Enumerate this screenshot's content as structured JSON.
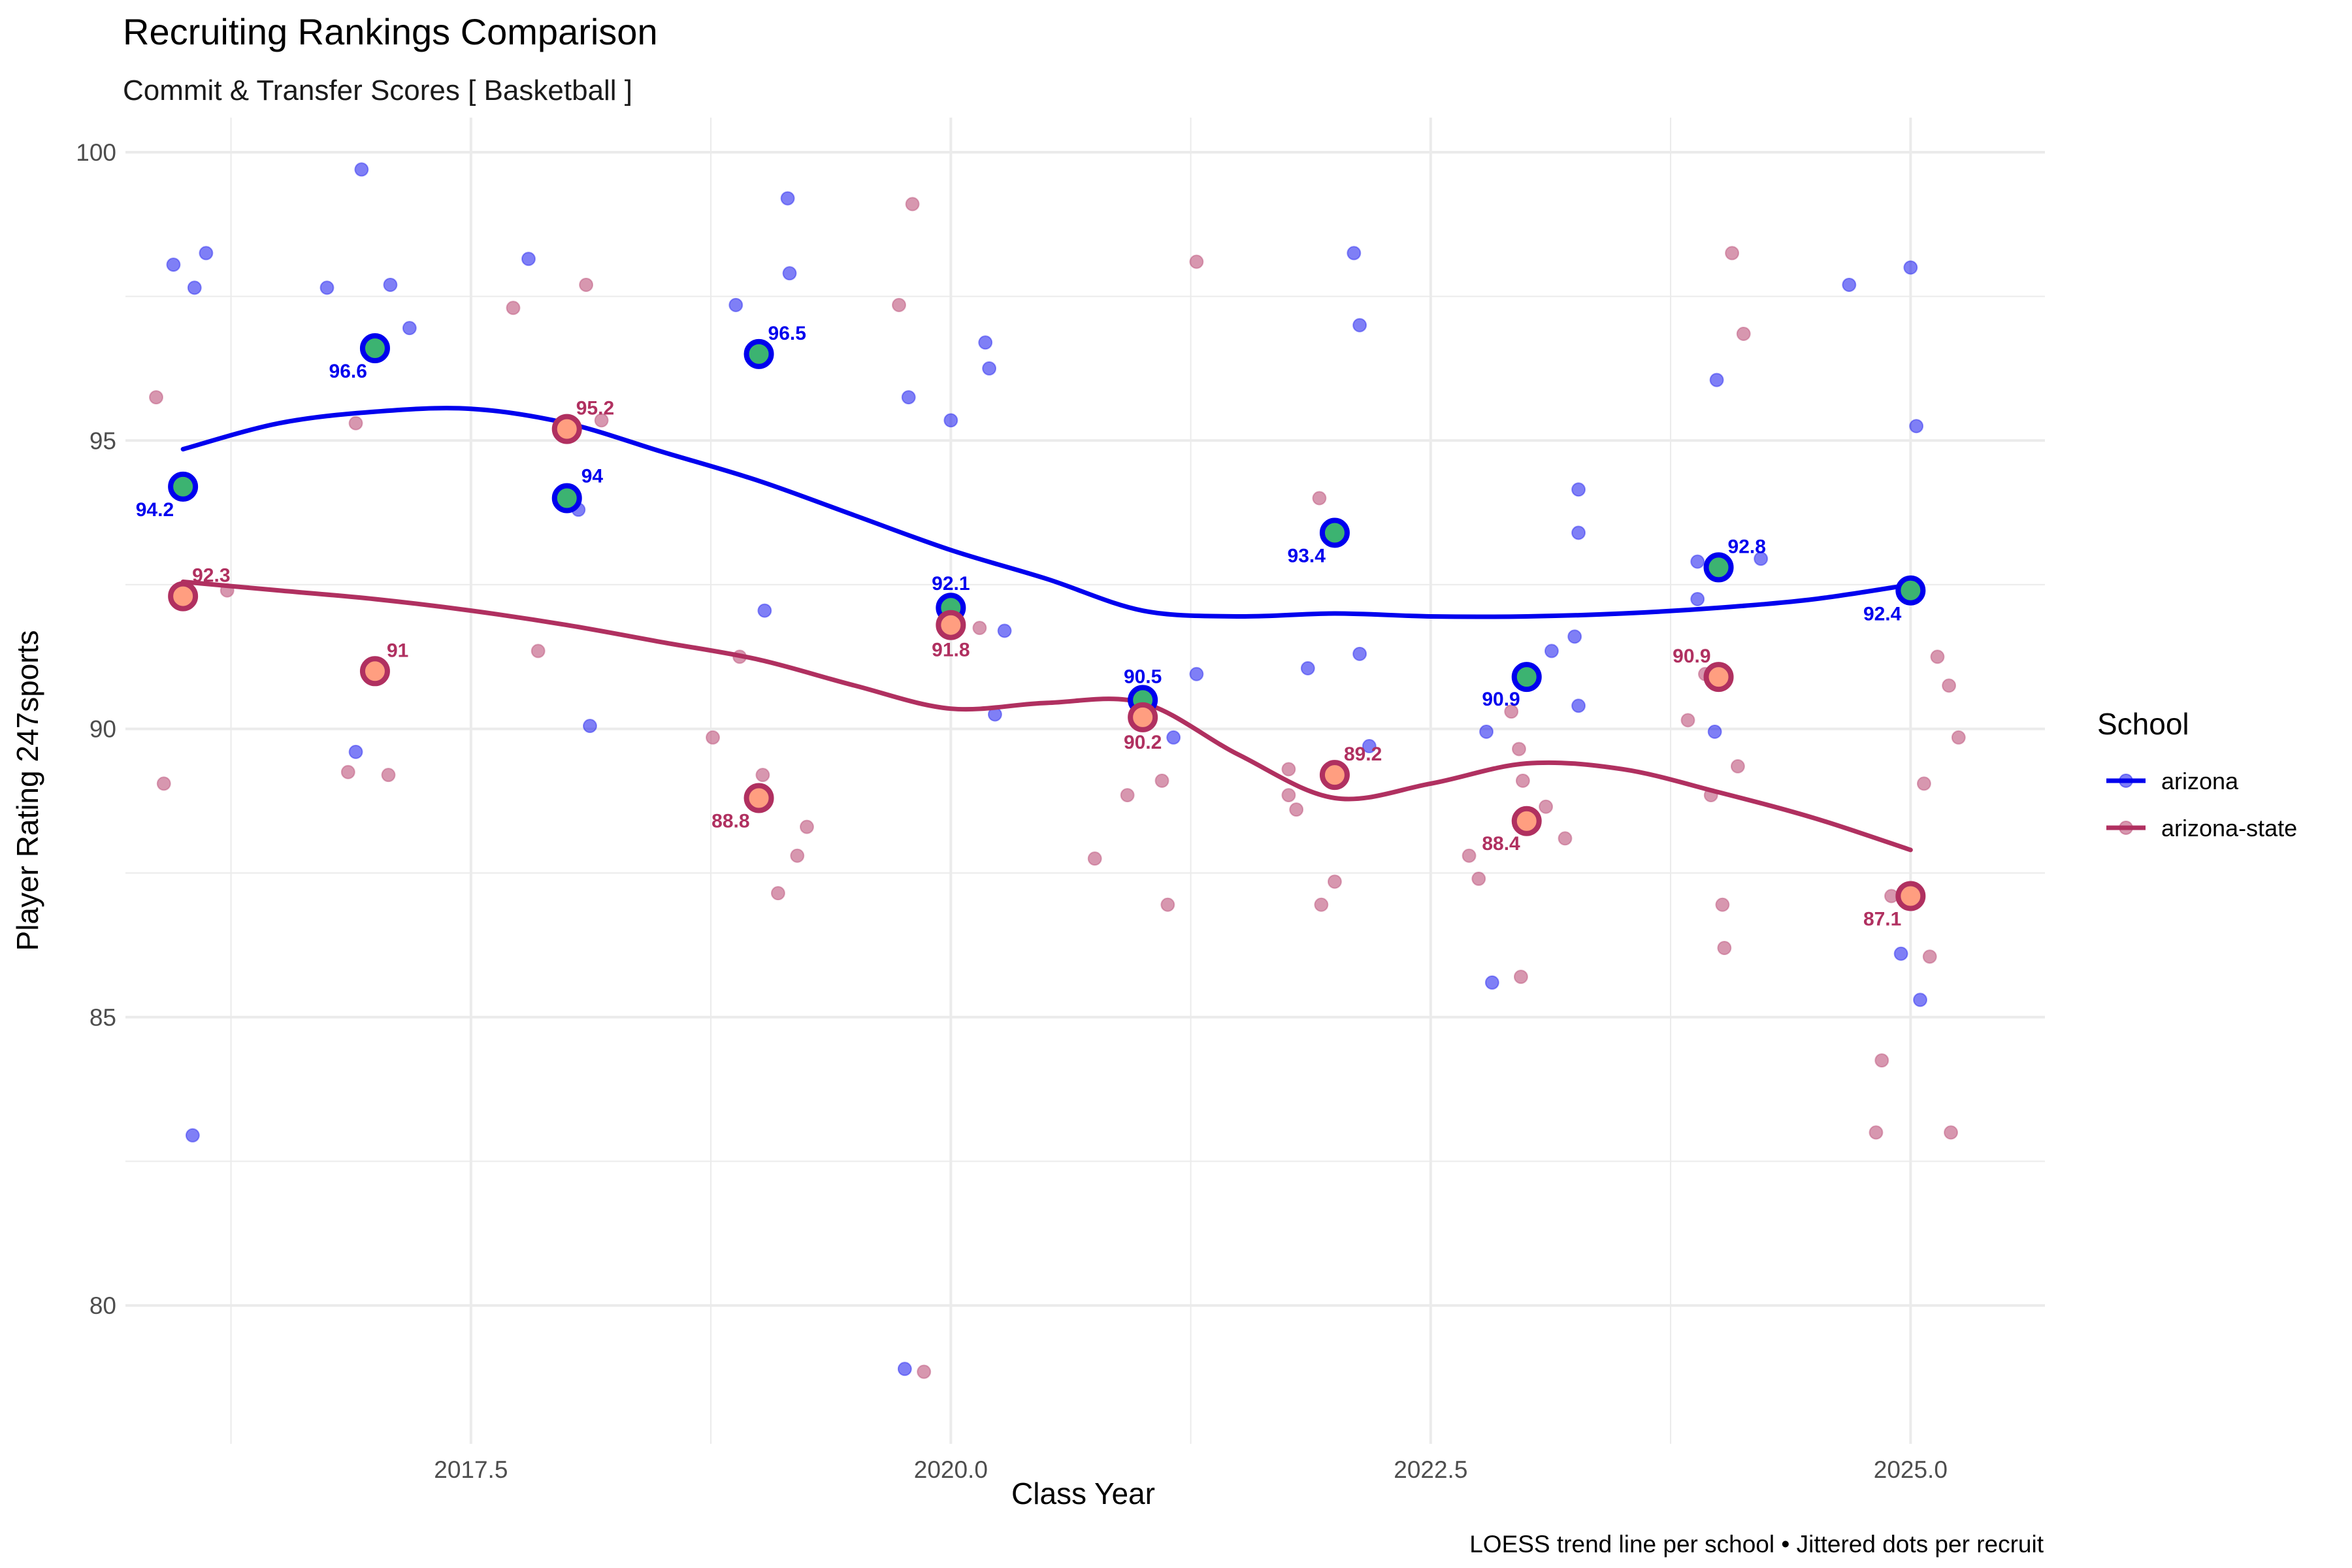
{
  "chart_data": {
    "type": "scatter",
    "title": "Recruiting Rankings Comparison",
    "subtitle": "Commit & Transfer Scores [ Basketball ]",
    "xlabel": "Class Year",
    "ylabel": "Player Rating 247sports",
    "caption": "LOESS trend line per school • Jittered dots per recruit",
    "xlim": [
      2015.7,
      2025.7
    ],
    "ylim": [
      77.6,
      100.6
    ],
    "x_ticks": [
      2017.5,
      2020.0,
      2022.5,
      2025.0
    ],
    "x_tick_labels": [
      "2017.5",
      "2020.0",
      "2022.5",
      "2025.0"
    ],
    "y_ticks": [
      80,
      85,
      90,
      95,
      100
    ],
    "y_tick_labels": [
      "80",
      "85",
      "90",
      "95",
      "100"
    ],
    "grid": true,
    "legend": {
      "title": "School",
      "position": "right"
    },
    "series": [
      {
        "name": "arizona",
        "color": "#0000EE",
        "annual_averages": [
          {
            "x": 2016,
            "y": 94.2,
            "label": "94.2"
          },
          {
            "x": 2017,
            "y": 96.6,
            "label": "96.6"
          },
          {
            "x": 2018,
            "y": 94.0,
            "label": "94"
          },
          {
            "x": 2019,
            "y": 96.5,
            "label": "96.5"
          },
          {
            "x": 2020,
            "y": 92.1,
            "label": "92.1"
          },
          {
            "x": 2021,
            "y": 90.5,
            "label": "90.5"
          },
          {
            "x": 2022,
            "y": 93.4,
            "label": "93.4"
          },
          {
            "x": 2023,
            "y": 90.9,
            "label": "90.9"
          },
          {
            "x": 2024,
            "y": 92.8,
            "label": "92.8"
          },
          {
            "x": 2025,
            "y": 92.4,
            "label": "92.4"
          }
        ],
        "trend": [
          [
            2016,
            94.85
          ],
          [
            2016.5,
            95.3
          ],
          [
            2017,
            95.5
          ],
          [
            2017.5,
            95.55
          ],
          [
            2018,
            95.3
          ],
          [
            2018.5,
            94.8
          ],
          [
            2019,
            94.3
          ],
          [
            2019.5,
            93.7
          ],
          [
            2020,
            93.1
          ],
          [
            2020.5,
            92.6
          ],
          [
            2021,
            92.05
          ],
          [
            2021.5,
            91.95
          ],
          [
            2022,
            92.0
          ],
          [
            2022.5,
            91.95
          ],
          [
            2023,
            91.95
          ],
          [
            2023.5,
            92.0
          ],
          [
            2024,
            92.1
          ],
          [
            2024.5,
            92.25
          ],
          [
            2025,
            92.5
          ]
        ],
        "recruits": [
          [
            2015.95,
            98.05
          ],
          [
            2016.06,
            97.65
          ],
          [
            2016.12,
            98.25
          ],
          [
            2016.05,
            82.95
          ],
          [
            2016.75,
            97.65
          ],
          [
            2016.93,
            99.7
          ],
          [
            2017.08,
            97.7
          ],
          [
            2017.18,
            96.95
          ],
          [
            2016.9,
            89.6
          ],
          [
            2017.8,
            98.15
          ],
          [
            2018.06,
            93.8
          ],
          [
            2018.12,
            90.05
          ],
          [
            2018.88,
            97.35
          ],
          [
            2019.16,
            97.9
          ],
          [
            2019.15,
            99.2
          ],
          [
            2019.03,
            92.05
          ],
          [
            2019.78,
            95.75
          ],
          [
            2020.18,
            96.7
          ],
          [
            2020.2,
            96.25
          ],
          [
            2020.0,
            95.35
          ],
          [
            2020.28,
            91.7
          ],
          [
            2020.23,
            90.25
          ],
          [
            2019.76,
            78.9
          ],
          [
            2021.16,
            89.85
          ],
          [
            2021.28,
            90.95
          ],
          [
            2021.86,
            91.05
          ],
          [
            2022.1,
            98.25
          ],
          [
            2022.13,
            97.0
          ],
          [
            2022.13,
            91.3
          ],
          [
            2022.18,
            89.7
          ],
          [
            2023.13,
            91.35
          ],
          [
            2023.25,
            91.6
          ],
          [
            2023.27,
            94.15
          ],
          [
            2023.27,
            93.4
          ],
          [
            2023.27,
            90.4
          ],
          [
            2022.79,
            89.95
          ],
          [
            2022.82,
            85.6
          ],
          [
            2023.89,
            92.9
          ],
          [
            2023.89,
            92.25
          ],
          [
            2023.98,
            89.95
          ],
          [
            2024.22,
            92.95
          ],
          [
            2023.99,
            96.05
          ],
          [
            2024.68,
            97.7
          ],
          [
            2025.0,
            98.0
          ],
          [
            2025.03,
            95.25
          ],
          [
            2024.95,
            86.1
          ],
          [
            2025.05,
            85.3
          ]
        ]
      },
      {
        "name": "arizona-state",
        "color": "#B03060",
        "annual_averages": [
          {
            "x": 2016,
            "y": 92.3,
            "label": "92.3"
          },
          {
            "x": 2017,
            "y": 91.0,
            "label": "91"
          },
          {
            "x": 2018,
            "y": 95.2,
            "label": "95.2"
          },
          {
            "x": 2019,
            "y": 88.8,
            "label": "88.8"
          },
          {
            "x": 2020,
            "y": 91.8,
            "label": "91.8"
          },
          {
            "x": 2021,
            "y": 90.2,
            "label": "90.2"
          },
          {
            "x": 2022,
            "y": 89.2,
            "label": "89.2"
          },
          {
            "x": 2023,
            "y": 88.4,
            "label": "88.4"
          },
          {
            "x": 2024,
            "y": 90.9,
            "label": "90.9"
          },
          {
            "x": 2025,
            "y": 87.1,
            "label": "87.1"
          }
        ],
        "trend": [
          [
            2016,
            92.55
          ],
          [
            2016.5,
            92.4
          ],
          [
            2017,
            92.25
          ],
          [
            2017.5,
            92.05
          ],
          [
            2018,
            91.8
          ],
          [
            2018.5,
            91.5
          ],
          [
            2019,
            91.2
          ],
          [
            2019.5,
            90.75
          ],
          [
            2020,
            90.35
          ],
          [
            2020.5,
            90.45
          ],
          [
            2021,
            90.45
          ],
          [
            2021.5,
            89.55
          ],
          [
            2022,
            88.8
          ],
          [
            2022.5,
            89.05
          ],
          [
            2023,
            89.4
          ],
          [
            2023.5,
            89.3
          ],
          [
            2024,
            88.9
          ],
          [
            2024.5,
            88.45
          ],
          [
            2025,
            87.9
          ]
        ],
        "recruits": [
          [
            2015.86,
            95.75
          ],
          [
            2015.9,
            89.05
          ],
          [
            2016.23,
            92.4
          ],
          [
            2016.9,
            95.3
          ],
          [
            2016.86,
            89.25
          ],
          [
            2017.07,
            89.2
          ],
          [
            2017.72,
            97.3
          ],
          [
            2017.85,
            91.35
          ],
          [
            2018.1,
            97.7
          ],
          [
            2018.18,
            95.35
          ],
          [
            2018.76,
            89.85
          ],
          [
            2018.9,
            91.25
          ],
          [
            2019.02,
            89.2
          ],
          [
            2019.1,
            87.15
          ],
          [
            2019.2,
            87.8
          ],
          [
            2019.25,
            88.3
          ],
          [
            2019.73,
            97.35
          ],
          [
            2019.8,
            99.1
          ],
          [
            2019.86,
            78.85
          ],
          [
            2020.15,
            91.75
          ],
          [
            2020.75,
            87.75
          ],
          [
            2020.92,
            88.85
          ],
          [
            2021.1,
            89.1
          ],
          [
            2021.13,
            86.95
          ],
          [
            2021.28,
            98.1
          ],
          [
            2021.76,
            89.3
          ],
          [
            2021.76,
            88.85
          ],
          [
            2021.8,
            88.6
          ],
          [
            2021.92,
            94.0
          ],
          [
            2021.93,
            86.95
          ],
          [
            2022.0,
            87.35
          ],
          [
            2022.7,
            87.8
          ],
          [
            2022.75,
            87.4
          ],
          [
            2022.92,
            90.3
          ],
          [
            2022.96,
            89.65
          ],
          [
            2022.98,
            89.1
          ],
          [
            2023.1,
            88.65
          ],
          [
            2023.2,
            88.1
          ],
          [
            2022.97,
            85.7
          ],
          [
            2023.84,
            90.15
          ],
          [
            2023.93,
            90.95
          ],
          [
            2023.96,
            88.85
          ],
          [
            2024.02,
            86.95
          ],
          [
            2024.03,
            86.2
          ],
          [
            2024.07,
            98.25
          ],
          [
            2024.1,
            89.35
          ],
          [
            2024.13,
            96.85
          ],
          [
            2024.82,
            83.0
          ],
          [
            2024.85,
            84.25
          ],
          [
            2024.9,
            87.1
          ],
          [
            2025.07,
            89.05
          ],
          [
            2025.1,
            86.05
          ],
          [
            2025.14,
            91.25
          ],
          [
            2025.2,
            90.75
          ],
          [
            2025.25,
            89.85
          ],
          [
            2025.21,
            83.0
          ]
        ]
      }
    ]
  },
  "style": {
    "arizona_marker_fill": "#3CB371",
    "arizona_state_marker_fill": "#FF9E80",
    "grid_color": "#EBEBEB",
    "text_color": "#1A1A1A",
    "tick_label_color": "#4D4D4D"
  }
}
